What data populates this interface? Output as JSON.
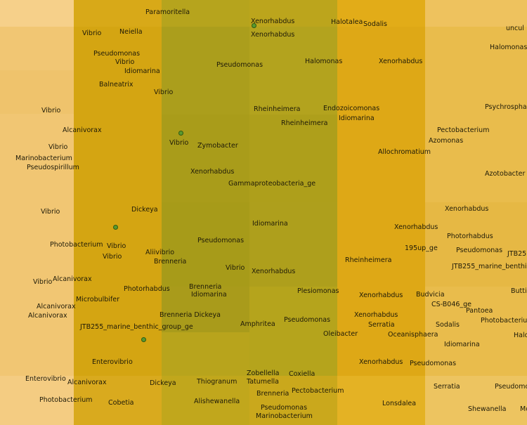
{
  "chart_data": {
    "type": "heatmap",
    "title": "",
    "xlabel": "",
    "ylabel": "",
    "colors": {
      "background": "#f3c978",
      "band_mid": "#d3a716",
      "band_center": "#aea21c",
      "band_right": "#dca91a",
      "band_edge": "#e7bc52",
      "points": "#5a9a2e"
    },
    "labels": [
      {
        "text": "Paramoritella"
      },
      {
        "text": "Xenorhabdus"
      },
      {
        "text": "Halotalea"
      },
      {
        "text": "Sodalis"
      },
      {
        "text": "uncul"
      },
      {
        "text": "Vibrio"
      },
      {
        "text": "Neiella"
      },
      {
        "text": "Xenorhabdus"
      },
      {
        "text": "Halomonas"
      },
      {
        "text": "Pseudomonas"
      },
      {
        "text": "Vibrio"
      },
      {
        "text": "Pseudomonas"
      },
      {
        "text": "Halomonas"
      },
      {
        "text": "Xenorhabdus"
      },
      {
        "text": "Idiomarina"
      },
      {
        "text": "Balneatrix"
      },
      {
        "text": "Vibrio"
      },
      {
        "text": "Vibrio"
      },
      {
        "text": "Rheinheimera"
      },
      {
        "text": "Endozoicomonas"
      },
      {
        "text": "Psychrospha"
      },
      {
        "text": "Idiomarina"
      },
      {
        "text": "Rheinheimera"
      },
      {
        "text": "Alcanivorax"
      },
      {
        "text": "Pectobacterium"
      },
      {
        "text": "Azomonas"
      },
      {
        "text": "Vibrio"
      },
      {
        "text": "Zymobacter"
      },
      {
        "text": "Vibrio"
      },
      {
        "text": "Allochromatium"
      },
      {
        "text": "Marinobacterium"
      },
      {
        "text": "Pseudospirillum"
      },
      {
        "text": "Xenorhabdus"
      },
      {
        "text": "Azotobacter"
      },
      {
        "text": "Gammaproteobacteria_ge"
      },
      {
        "text": "Vibrio"
      },
      {
        "text": "Dickeya"
      },
      {
        "text": "Xenorhabdus"
      },
      {
        "text": "Idiomarina"
      },
      {
        "text": "Xenorhabdus"
      },
      {
        "text": "Photorhabdus"
      },
      {
        "text": "Pseudomonas"
      },
      {
        "text": "Photobacterium"
      },
      {
        "text": "Vibrio"
      },
      {
        "text": "195up_ge"
      },
      {
        "text": "Pseudomonas"
      },
      {
        "text": "JTB25"
      },
      {
        "text": "Aliivibrio"
      },
      {
        "text": "Vibrio"
      },
      {
        "text": "Rheinheimera"
      },
      {
        "text": "Brenneria"
      },
      {
        "text": "Alcanivorax"
      },
      {
        "text": "JTB255_marine_benthi"
      },
      {
        "text": "Vibrio"
      },
      {
        "text": "Vibrio"
      },
      {
        "text": "Xenorhabdus"
      },
      {
        "text": "Photorhabdus"
      },
      {
        "text": "Brenneria"
      },
      {
        "text": "Plesiomonas"
      },
      {
        "text": "Butti"
      },
      {
        "text": "Idiomarina"
      },
      {
        "text": "Xenorhabdus"
      },
      {
        "text": "Budvicia"
      },
      {
        "text": "Microbulbifer"
      },
      {
        "text": "Alcanivorax"
      },
      {
        "text": "CS-B046_ge"
      },
      {
        "text": "Pantoea"
      },
      {
        "text": "Brenneria Dickeya"
      },
      {
        "text": "Xenorhabdus"
      },
      {
        "text": "Alcanivorax"
      },
      {
        "text": "Photobacteriu"
      },
      {
        "text": "Pseudomonas"
      },
      {
        "text": "Amphritea"
      },
      {
        "text": "Serratia"
      },
      {
        "text": "JTB255_marine_benthic_group_ge"
      },
      {
        "text": "Sodalis"
      },
      {
        "text": "Halo"
      },
      {
        "text": "Oleibacter"
      },
      {
        "text": "Oceanisphaera"
      },
      {
        "text": "Idiomarina"
      },
      {
        "text": "Enterovibrio"
      },
      {
        "text": "Xenorhabdus"
      },
      {
        "text": "Pseudomonas"
      },
      {
        "text": "Zobellella"
      },
      {
        "text": "Coxiella"
      },
      {
        "text": "Enterovibrio"
      },
      {
        "text": "Alcanivorax"
      },
      {
        "text": "Dickeya"
      },
      {
        "text": "Thiogranum"
      },
      {
        "text": "Tatumella"
      },
      {
        "text": "Serratia"
      },
      {
        "text": "Pseudomo"
      },
      {
        "text": "Pectobacterium"
      },
      {
        "text": "Brenneria"
      },
      {
        "text": "Photobacterium"
      },
      {
        "text": "Cobetia"
      },
      {
        "text": "Alishewanella"
      },
      {
        "text": "Lonsdalea"
      },
      {
        "text": "Pseudomonas"
      },
      {
        "text": "Shewanella"
      },
      {
        "text": "Mo"
      },
      {
        "text": "Marinobacterium"
      }
    ]
  }
}
